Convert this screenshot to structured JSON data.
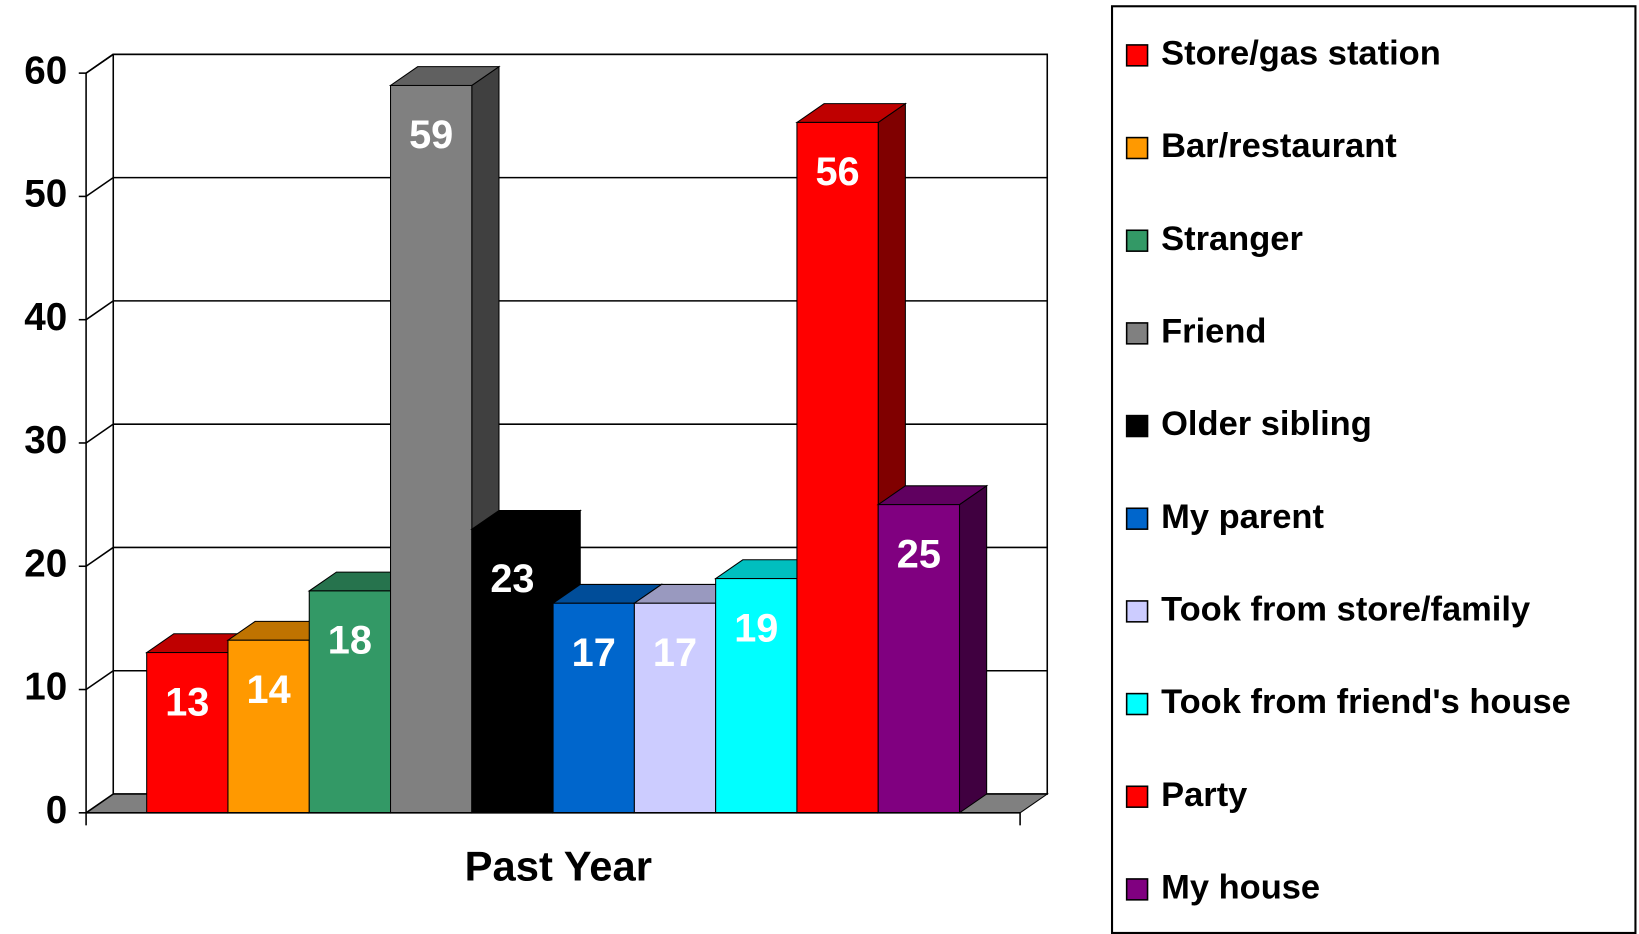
{
  "chart_data": {
    "type": "bar",
    "categories": [
      "Past Year"
    ],
    "series": [
      {
        "name": "Store/gas station",
        "color": "#ff0000",
        "values": [
          13
        ]
      },
      {
        "name": "Bar/restaurant",
        "color": "#ff9900",
        "values": [
          14
        ]
      },
      {
        "name": "Stranger",
        "color": "#339966",
        "values": [
          18
        ]
      },
      {
        "name": "Friend",
        "color": "#808080",
        "values": [
          59
        ]
      },
      {
        "name": "Older sibling",
        "color": "#000000",
        "values": [
          23
        ]
      },
      {
        "name": "My parent",
        "color": "#0066cc",
        "values": [
          17
        ]
      },
      {
        "name": "Took from store/family",
        "color": "#ccccff",
        "values": [
          17
        ]
      },
      {
        "name": "Took from friend's house",
        "color": "#00ffff",
        "values": [
          19
        ]
      },
      {
        "name": "Party",
        "color": "#ff0000",
        "values": [
          56
        ]
      },
      {
        "name": "My house",
        "color": "#800080",
        "values": [
          25
        ]
      }
    ],
    "ylim": [
      0,
      60
    ],
    "yticks": [
      0,
      10,
      20,
      30,
      40,
      50,
      60
    ],
    "grid": true,
    "legend": "right"
  }
}
